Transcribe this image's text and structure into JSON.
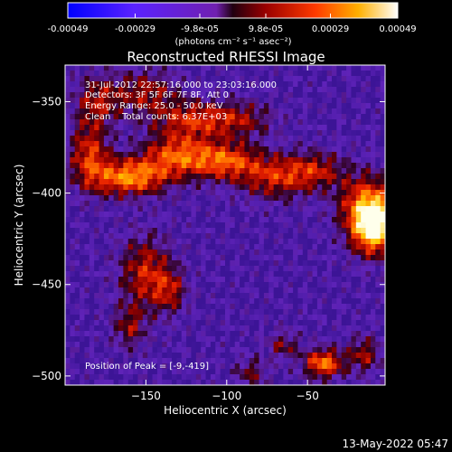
{
  "chart_data": {
    "type": "heatmap",
    "title": "Reconstructed RHESSI Image",
    "xlabel": "Heliocentric X (arcsec)",
    "ylabel": "Heliocentric Y (arcsec)",
    "xlim": [
      -200,
      -2
    ],
    "ylim": [
      -505,
      -330
    ],
    "x_ticks": [
      -150,
      -100,
      -50
    ],
    "y_ticks": [
      -350,
      -400,
      -450,
      -500
    ],
    "colorbar": {
      "tick_labels": [
        "-0.00049",
        "-0.00029",
        "-9.8e-05",
        "9.8e-05",
        "0.00029",
        "0.00049"
      ],
      "tick_values": [
        -0.00049,
        -0.00029,
        -9.8e-05,
        9.8e-05,
        0.00029,
        0.00049
      ],
      "range": [
        -0.00049,
        0.00049
      ],
      "unit_label": "(photons cm⁻² s⁻¹ asec⁻²)"
    },
    "annotations": [
      "31-Jul-2012 22:57:16.000 to 23:03:16.000",
      "Detectors: 3F 5F 6F 7F 8F, Att 0",
      "Energy Range: 25.0 - 50.0 keV",
      "Clean    Total counts: 6.37E+03"
    ],
    "peak_text": "Position of Peak = [-9,-419]",
    "peak_position": [
      -9,
      -419
    ],
    "footer_date": "13-May-2022 05:47",
    "grid": false
  }
}
